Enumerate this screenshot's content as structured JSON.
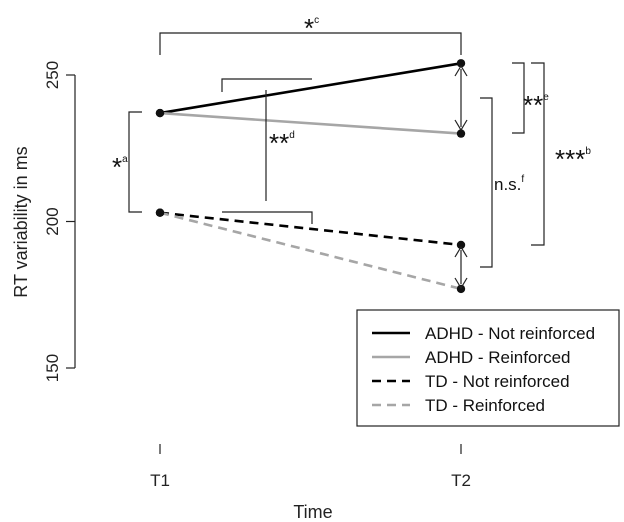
{
  "chart_data": {
    "type": "line",
    "xlabel": "Time",
    "ylabel": "RT variability in ms",
    "categories": [
      "T1",
      "T2"
    ],
    "y_ticks": [
      150,
      200,
      250
    ],
    "ylim": [
      140,
      258
    ],
    "grid": false,
    "legend_position": "bottom-right",
    "series": [
      {
        "name": "ADHD - Not reinforced",
        "values": [
          237,
          254
        ],
        "color": "#000000",
        "dashed": false
      },
      {
        "name": "ADHD - Reinforced",
        "values": [
          237,
          230
        ],
        "color": "#a6a6a6",
        "dashed": false
      },
      {
        "name": "TD - Not reinforced",
        "values": [
          203,
          192
        ],
        "color": "#000000",
        "dashed": true
      },
      {
        "name": "TD - Reinforced",
        "values": [
          203,
          177
        ],
        "color": "#a6a6a6",
        "dashed": true
      }
    ],
    "annotations": [
      {
        "id": "a",
        "stars": "*",
        "sup": "a"
      },
      {
        "id": "b",
        "stars": "***",
        "sup": "b"
      },
      {
        "id": "c",
        "stars": "*",
        "sup": "c"
      },
      {
        "id": "d",
        "stars": "**",
        "sup": "d"
      },
      {
        "id": "e",
        "stars": "**",
        "sup": "e"
      },
      {
        "id": "f",
        "stars": "n.s.",
        "sup": "f"
      }
    ]
  }
}
